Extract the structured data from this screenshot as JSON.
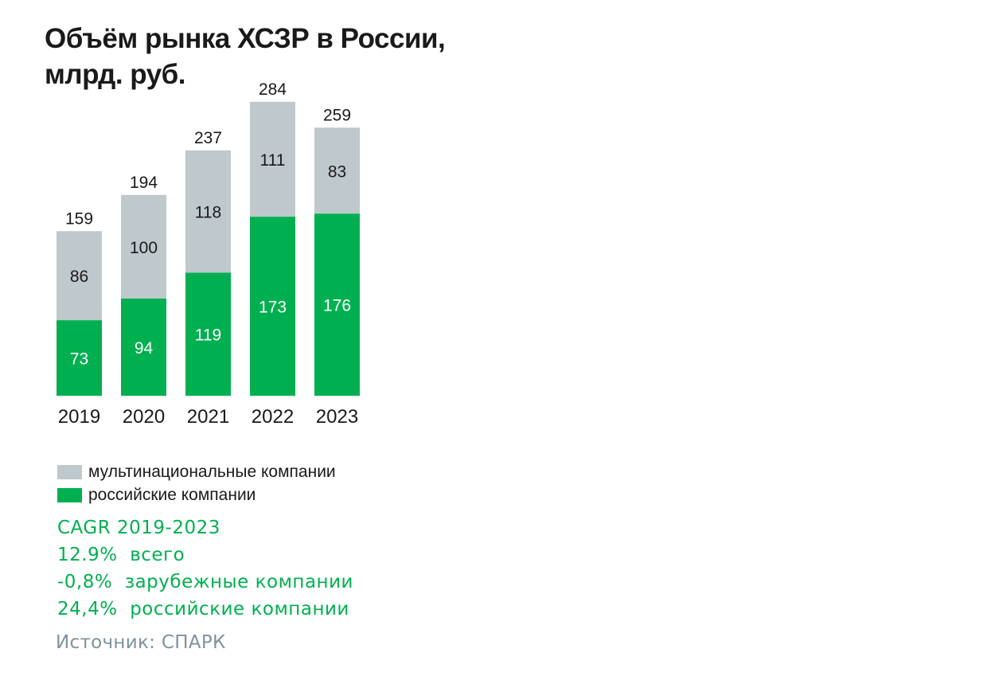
{
  "title": "Объём рынка ХСЗР в России, млрд. руб.",
  "chart_data": {
    "type": "bar",
    "stacked": true,
    "categories": [
      "2019",
      "2020",
      "2021",
      "2022",
      "2023"
    ],
    "series": [
      {
        "name": "российские компании",
        "values": [
          73,
          94,
          119,
          173,
          176
        ],
        "color": "#00b050"
      },
      {
        "name": "мультинациональные компании",
        "values": [
          86,
          100,
          118,
          111,
          83
        ],
        "color": "#bfc8cc"
      }
    ],
    "totals": [
      159,
      194,
      237,
      284,
      259
    ],
    "ylim": [
      0,
      300
    ],
    "grid": false,
    "legend": "bottom-left"
  },
  "legend": [
    {
      "label": "мультинациональные компании",
      "color": "#bfc8cc"
    },
    {
      "label": "российские компании",
      "color": "#00b050"
    }
  ],
  "cagr": {
    "color": "#00b050",
    "lines": [
      "CAGR 2019-2023",
      "12.9%  всего",
      "-0,8%  зарубежные компании",
      "24,4%  российские компании"
    ]
  },
  "source": {
    "text": "Источник: СПАРК",
    "color": "#7f939c"
  }
}
